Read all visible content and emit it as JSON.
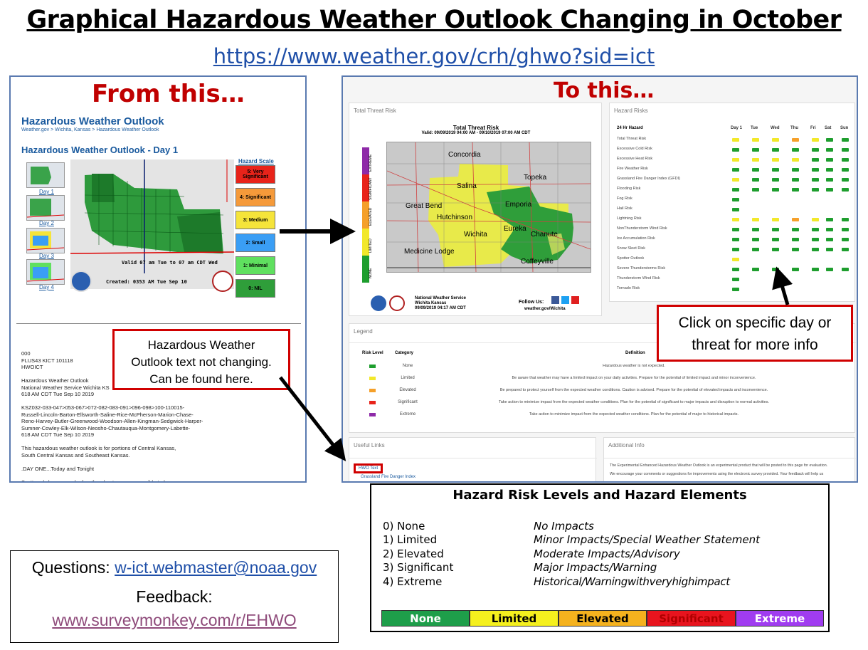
{
  "title": "Graphical Hazardous Weather Outlook Changing in October",
  "url": "https://www.weather.gov/crh/ghwo?sid=ict",
  "left": {
    "heading": "From this…",
    "hwo_title": "Hazardous Weather Outlook",
    "breadcrumb": "Weather.gov > Wichita, Kansas > Hazardous Weather Outlook",
    "day_title": "Hazardous Weather Outlook - Day 1",
    "hazard_scale_label": "Hazard Scale",
    "scale": [
      "5: Very Significant",
      "4: Significant",
      "3: Medium",
      "2: Small",
      "1: Minimal",
      "0: NIL"
    ],
    "scale_colors": [
      "#e8231a",
      "#f59a3a",
      "#f5e43a",
      "#3a9ef5",
      "#5fe05f",
      "#2f9e3a"
    ],
    "days": [
      "Day 1",
      "Day 2",
      "Day 3",
      "Day 4"
    ],
    "map_valid": "Valid 07 am Tue to 07 am CDT Wed",
    "map_created": "Created: 0353 AM Tue Sep 10",
    "text_lines": [
      "000",
      "FLUS43 KICT 101118",
      "HWOICT",
      "",
      "Hazardous Weather Outlook",
      "National Weather Service Wichita KS",
      "618 AM CDT Tue Sep 10 2019",
      "",
      "KSZ032-033-047>053-067>072-082-083-091>096-098>100-110015-",
      "Russell-Lincoln-Barton-Ellsworth-Saline-Rice-McPherson-Marion-Chase-",
      "Reno-Harvey-Butler-Greenwood-Woodson-Allen-Kingman-Sedgwick-Harper-",
      "Sumner-Cowley-Elk-Wilson-Neosho-Chautauqua-Montgomery-Labette-",
      "618 AM CDT Tue Sep 10 2019",
      "",
      "This hazardous weather outlook is for portions of Central Kansas,",
      "South Central Kansas and Southeast Kansas.",
      "",
      ".DAY ONE...Today and Tonight",
      "",
      "Scattered showers and a few thunderstorms are possible today across",
      "much of Central Kansas. Any thunderstorm that develops are not"
    ],
    "callout": [
      "Hazardous Weather",
      "Outlook text not changing.",
      "Can be found here."
    ]
  },
  "right": {
    "heading": "To this…",
    "total_threat_header": "Total Threat Risk",
    "map_title": "Total Threat Risk",
    "map_valid": "Valid: 09/09/2019 04:00 AM - 09/10/2019 07:00 AM CDT",
    "risk_bar": [
      "EXTREME",
      "SIGNIFICANT",
      "ELEVATED",
      "LIMITED",
      "NONE"
    ],
    "cities": [
      "Concordia",
      "Salina",
      "Topeka",
      "Great Bend",
      "Emporia",
      "Hutchinson",
      "Wichita",
      "Eureka",
      "Chanute",
      "Medicine Lodge",
      "Coffeyville"
    ],
    "nws_office": "National Weather Service",
    "nws_location": "Wichita Kansas",
    "nws_time": "09/09/2019 04:17 AM CDT",
    "follow_us": "Follow Us:",
    "site": "weather.gov/Wichita",
    "hazard_risks_header": "Hazard Risks",
    "hazard_col": "24 Hr Hazard",
    "days": [
      "Day 1",
      "Tue",
      "Wed",
      "Thu",
      "Fri",
      "Sat",
      "Sun"
    ],
    "hazards": [
      {
        "name": "Total Threat Risk",
        "levels": [
          1,
          1,
          1,
          2,
          1,
          0,
          0
        ]
      },
      {
        "name": "Excessive Cold Risk",
        "levels": [
          0,
          0,
          0,
          0,
          0,
          0,
          0
        ]
      },
      {
        "name": "Excessive Heat Risk",
        "levels": [
          1,
          1,
          1,
          1,
          0,
          0,
          0
        ]
      },
      {
        "name": "Fire Weather Risk",
        "levels": [
          0,
          0,
          0,
          0,
          0,
          0,
          0
        ]
      },
      {
        "name": "Grassland Fire Danger Index (GFDI)",
        "levels": [
          1,
          0,
          0,
          0,
          0,
          0,
          0
        ]
      },
      {
        "name": "Flooding Risk",
        "levels": [
          0,
          0,
          0,
          0,
          0,
          0,
          0
        ]
      },
      {
        "name": "Fog Risk",
        "levels": [
          0
        ]
      },
      {
        "name": "Hail Risk",
        "levels": [
          0
        ]
      },
      {
        "name": "Lightning Risk",
        "levels": [
          1,
          1,
          1,
          2,
          1,
          0,
          0
        ]
      },
      {
        "name": "NonThunderstorm Wind Risk",
        "levels": [
          0,
          0,
          0,
          0,
          0,
          0,
          0
        ]
      },
      {
        "name": "Ice Accumulation Risk",
        "levels": [
          0,
          0,
          0,
          0,
          0,
          0,
          0
        ]
      },
      {
        "name": "Snow Sleet Risk",
        "levels": [
          0,
          0,
          0,
          0,
          0,
          0,
          0
        ]
      },
      {
        "name": "Spotter Outlook",
        "levels": [
          1
        ]
      },
      {
        "name": "Severe Thunderstorms Risk",
        "levels": [
          0,
          0,
          0,
          0,
          0,
          0,
          0
        ]
      },
      {
        "name": "Thunderstorm Wind Risk",
        "levels": [
          0
        ]
      },
      {
        "name": "Tornado Risk",
        "levels": [
          0
        ]
      }
    ],
    "risk_colors": [
      "#1e9e2e",
      "#f2e82a",
      "#f5a02a",
      "#e8231a",
      "#8e2aa8"
    ],
    "callout": [
      "Click on specific day or",
      "threat for more info"
    ],
    "legend_header": "Legend",
    "legend_cols": [
      "Risk Level",
      "Category",
      "Definition"
    ],
    "legend": [
      {
        "cat": "None",
        "def": "Hazardous weather is not expected."
      },
      {
        "cat": "Limited",
        "def": "Be aware that weather may have a limited impact on your daily activities. Prepare for the potential of limited impact and minor inconvenience."
      },
      {
        "cat": "Elevated",
        "def": "Be prepared to protect yourself from the expected weather conditions. Caution is advised. Prepare for the potential of elevated impacts and inconvenience."
      },
      {
        "cat": "Significant",
        "def": "Take action to minimize impact from the expected weather conditions. Plan for the potential of significant to major impacts and disruption to normal activities."
      },
      {
        "cat": "Extreme",
        "def": "Take action to minimize impact from the expected weather conditions. Plan for the potential of major to historical impacts."
      }
    ],
    "useful_links_header": "Useful Links",
    "link_hwo": "HWO Text",
    "link_gfdi": "Grassland Fire Danger Index",
    "additional_info_header": "Additional Info",
    "additional_info_1": "The Experimental Enhanced Hazardous Weather Outlook is an experimental product that will be posted to this page for evaluation.",
    "additional_info_2": "We encourage your comments or suggestions for improvements using the electronic survey provided. Your feedback will help us"
  },
  "hazard_table": {
    "title": "Hazard Risk Levels and Hazard Elements",
    "levels": [
      "0) None",
      "1) Limited",
      "2) Elevated",
      "3) Significant",
      "4) Extreme"
    ],
    "impacts": [
      "No Impacts",
      "Minor Impacts/Special Weather  Statement",
      "Moderate  Impacts/Advisory",
      "Major Impacts/Warning",
      "Historical/Warningwithveryhighimpact"
    ],
    "bar": [
      "None",
      "Limited",
      "Elevated",
      "Significant",
      "Extreme"
    ],
    "bar_colors": [
      "#1e9e4a",
      "#f5f01e",
      "#f5b21e",
      "#e8141e",
      "#a03cf0"
    ],
    "bar_text_colors": [
      "#ffffff",
      "#000000",
      "#000000",
      "#b00000",
      "#ffffff"
    ]
  },
  "contact": {
    "questions_label": "Questions:",
    "email": "w-ict.webmaster@noaa.gov",
    "feedback_label": "Feedback:",
    "survey": "www.surveymonkey.com/r/EHWO"
  }
}
